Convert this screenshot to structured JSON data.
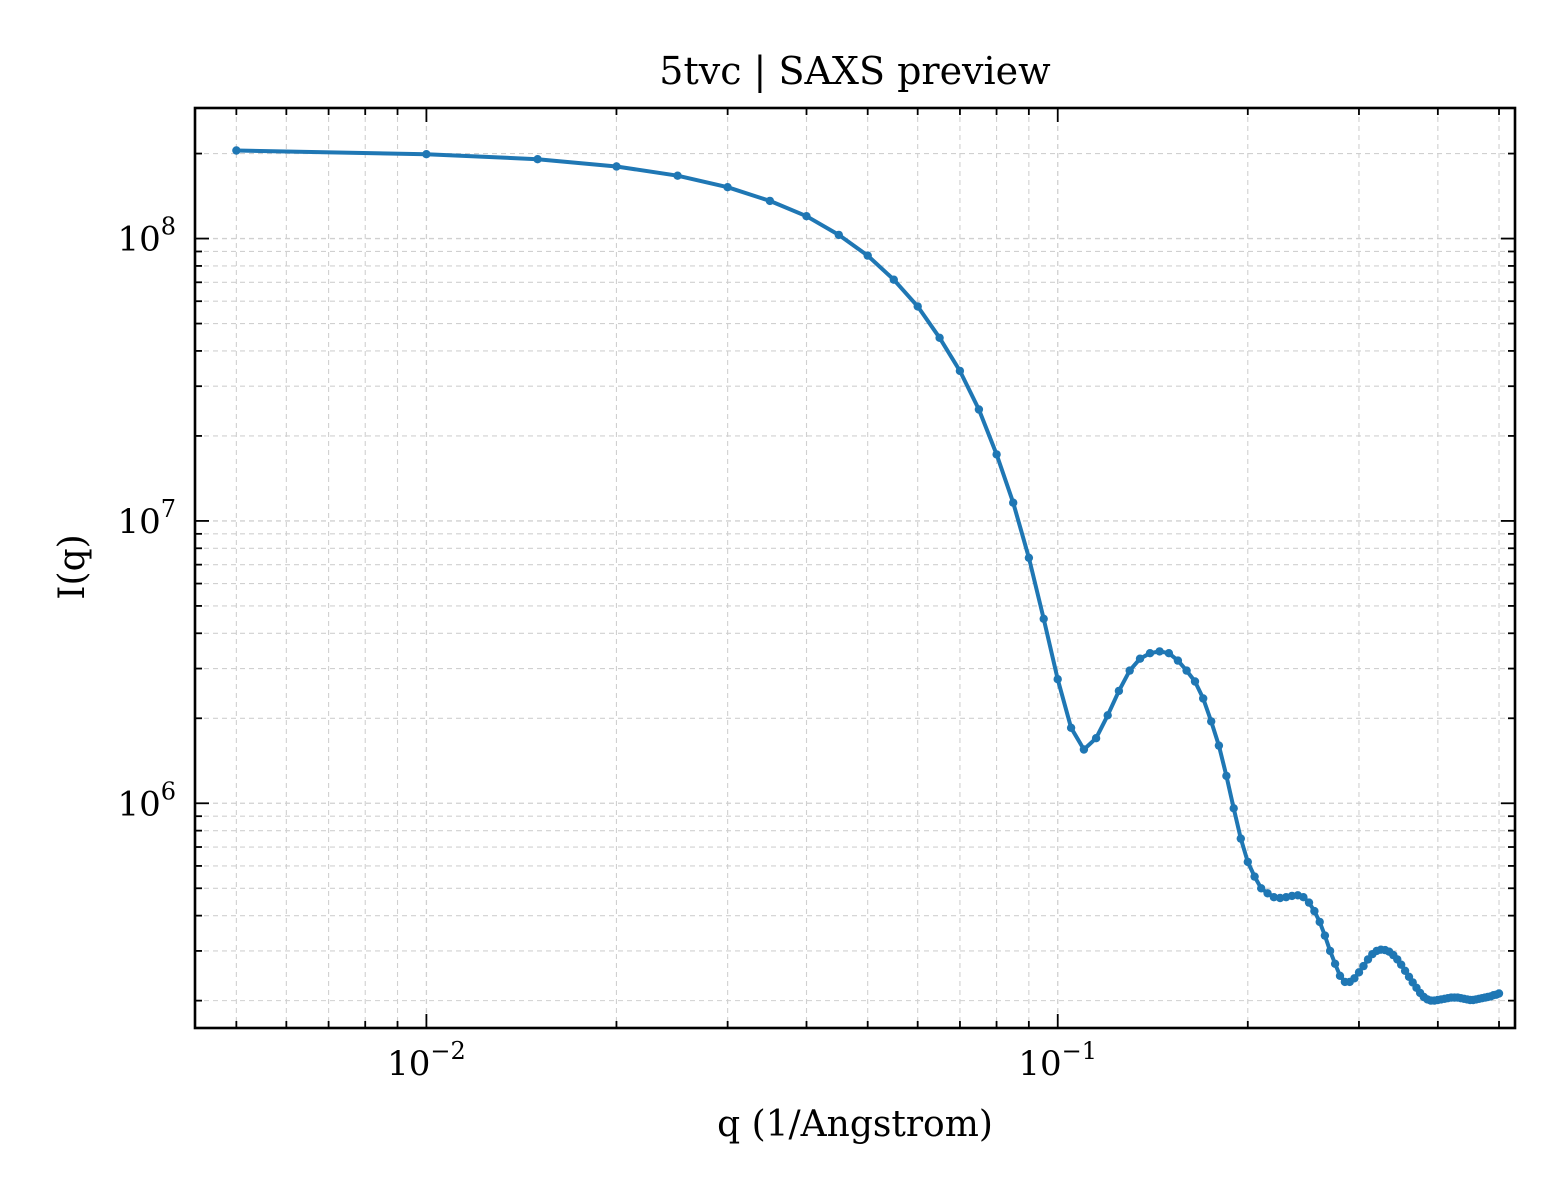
{
  "chart_data": {
    "type": "line",
    "title": "5tvc | SAXS preview",
    "xlabel": "q (1/Angstrom)",
    "ylabel": "I(q)",
    "xscale": "log",
    "yscale": "log",
    "xlim": [
      0.0043,
      0.53
    ],
    "ylim": [
      160000,
      290000000
    ],
    "grid": true,
    "legend": "none",
    "xticks": [
      {
        "value": 0.01,
        "base": "10",
        "exp": "−2"
      },
      {
        "value": 0.1,
        "base": "10",
        "exp": "−1"
      }
    ],
    "yticks": [
      {
        "value": 1000000,
        "base": "10",
        "exp": "6"
      },
      {
        "value": 10000000,
        "base": "10",
        "exp": "7"
      },
      {
        "value": 100000000,
        "base": "10",
        "exp": "8"
      }
    ],
    "series": [
      {
        "color": "#1f77b4",
        "x": [
          0.005,
          0.01,
          0.015,
          0.02,
          0.025,
          0.03,
          0.035,
          0.04,
          0.045,
          0.05,
          0.055,
          0.06,
          0.065,
          0.07,
          0.075,
          0.08,
          0.085,
          0.09,
          0.095,
          0.1,
          0.105,
          0.11,
          0.115,
          0.12,
          0.125,
          0.13,
          0.135,
          0.14,
          0.145,
          0.15,
          0.155,
          0.16,
          0.165,
          0.17,
          0.175,
          0.18,
          0.185,
          0.19,
          0.195,
          0.2,
          0.205,
          0.21,
          0.215,
          0.22,
          0.225,
          0.23,
          0.235,
          0.24,
          0.245,
          0.25,
          0.255,
          0.26,
          0.265,
          0.27,
          0.275,
          0.28,
          0.285,
          0.29,
          0.295,
          0.3,
          0.305,
          0.31,
          0.315,
          0.32,
          0.325,
          0.33,
          0.335,
          0.34,
          0.345,
          0.35,
          0.355,
          0.36,
          0.365,
          0.37,
          0.375,
          0.38,
          0.385,
          0.39,
          0.395,
          0.4,
          0.405,
          0.41,
          0.415,
          0.42,
          0.425,
          0.43,
          0.435,
          0.44,
          0.445,
          0.45,
          0.455,
          0.46,
          0.465,
          0.47,
          0.475,
          0.48,
          0.485,
          0.49,
          0.495,
          0.5
        ],
        "y": [
          205000000,
          199000000,
          191000000,
          180000000,
          167000000,
          152000000,
          136000000,
          120000000,
          103000000,
          87000000,
          71500000,
          57500000,
          44500000,
          34000000,
          24800000,
          17200000,
          11600000,
          7400000,
          4500000,
          2750000,
          1850000,
          1550000,
          1700000,
          2050000,
          2500000,
          2950000,
          3250000,
          3400000,
          3450000,
          3400000,
          3200000,
          2950000,
          2700000,
          2350000,
          1950000,
          1600000,
          1250000,
          960000,
          750000,
          620000,
          550000,
          500000,
          480000,
          465000,
          462000,
          465000,
          470000,
          472000,
          465000,
          445000,
          415000,
          380000,
          340000,
          300000,
          270000,
          245000,
          233000,
          233000,
          240000,
          252000,
          265000,
          280000,
          292000,
          300000,
          303000,
          302000,
          298000,
          290000,
          280000,
          268000,
          255000,
          243000,
          232000,
          222000,
          213000,
          206000,
          202000,
          200000,
          200000,
          201000,
          202000,
          203000,
          204000,
          205000,
          205000,
          205000,
          204000,
          203000,
          202000,
          201000,
          201000,
          202000,
          203000,
          204000,
          205000,
          206000,
          207000,
          209000,
          210000,
          212000
        ]
      }
    ]
  }
}
